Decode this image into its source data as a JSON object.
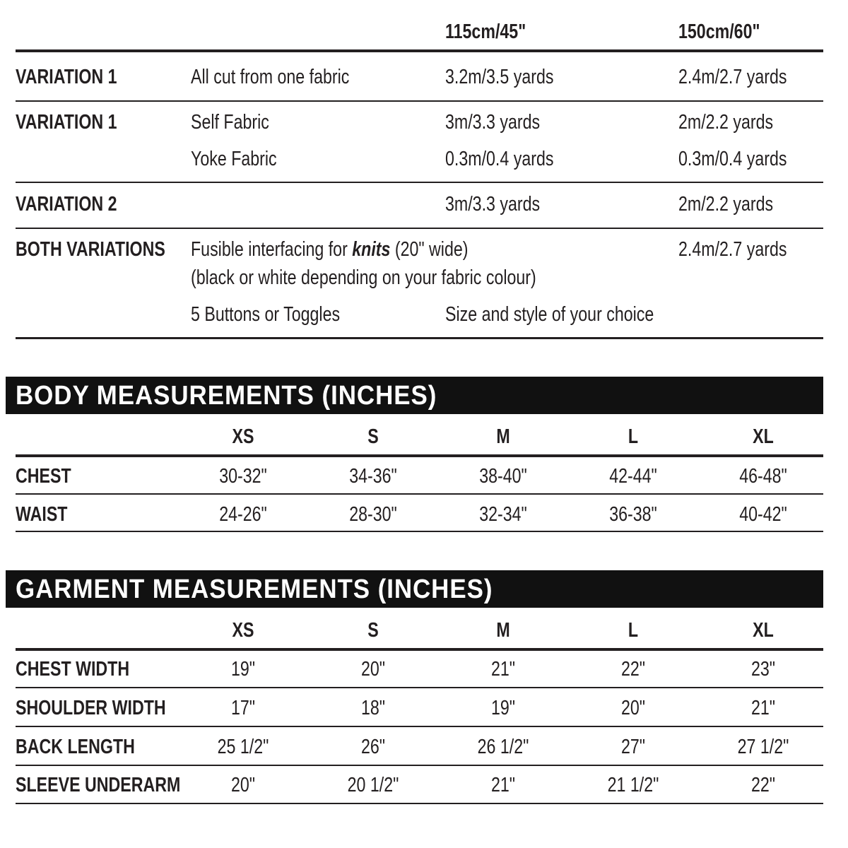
{
  "fabric": {
    "headers": [
      "115cm/45\"",
      "150cm/60\""
    ],
    "rows": [
      {
        "label": "VARIATION 1",
        "desc": "All cut from one fabric",
        "w115": "3.2m/3.5 yards",
        "w150": "2.4m/2.7 yards"
      },
      {
        "label": "VARIATION 1",
        "desc": "Self Fabric",
        "w115": "3m/3.3 yards",
        "w150": "2m/2.2 yards"
      },
      {
        "label": "",
        "desc": "Yoke Fabric",
        "w115": "0.3m/0.4 yards",
        "w150": "0.3m/0.4 yards"
      },
      {
        "label": "VARIATION 2",
        "desc": "",
        "w115": "3m/3.3 yards",
        "w150": "2m/2.2 yards"
      }
    ],
    "both": {
      "label": "BOTH VARIATIONS",
      "interfacing_pre": "Fusible interfacing for ",
      "interfacing_em": "knits",
      "interfacing_post": " (20\" wide)",
      "interfacing_note": "(black or white depending on your fabric colour)",
      "interfacing_amount": "2.4m/2.7 yards",
      "buttons": "5 Buttons or Toggles",
      "buttons_note": "Size and style of your choice"
    }
  },
  "body": {
    "title": "BODY MEASUREMENTS (INCHES)",
    "sizes": [
      "XS",
      "S",
      "M",
      "L",
      "XL"
    ],
    "rows": [
      {
        "label": "CHEST",
        "values": [
          "30-32\"",
          "34-36\"",
          "38-40\"",
          "42-44\"",
          "46-48\""
        ]
      },
      {
        "label": "WAIST",
        "values": [
          "24-26\"",
          "28-30\"",
          "32-34\"",
          "36-38\"",
          "40-42\""
        ]
      }
    ]
  },
  "garment": {
    "title": "GARMENT MEASUREMENTS (INCHES)",
    "sizes": [
      "XS",
      "S",
      "M",
      "L",
      "XL"
    ],
    "rows": [
      {
        "label": "CHEST WIDTH",
        "values": [
          "19\"",
          "20\"",
          "21\"",
          "22\"",
          "23\""
        ]
      },
      {
        "label": "SHOULDER WIDTH",
        "values": [
          "17\"",
          "18\"",
          "19\"",
          "20\"",
          "21\""
        ]
      },
      {
        "label": "BACK LENGTH",
        "values": [
          "25 1/2\"",
          "26\"",
          "26 1/2\"",
          "27\"",
          "27 1/2\""
        ]
      },
      {
        "label": "SLEEVE UNDERARM",
        "values": [
          "20\"",
          "20 1/2\"",
          "21\"",
          "21 1/2\"",
          "22\""
        ]
      }
    ]
  }
}
